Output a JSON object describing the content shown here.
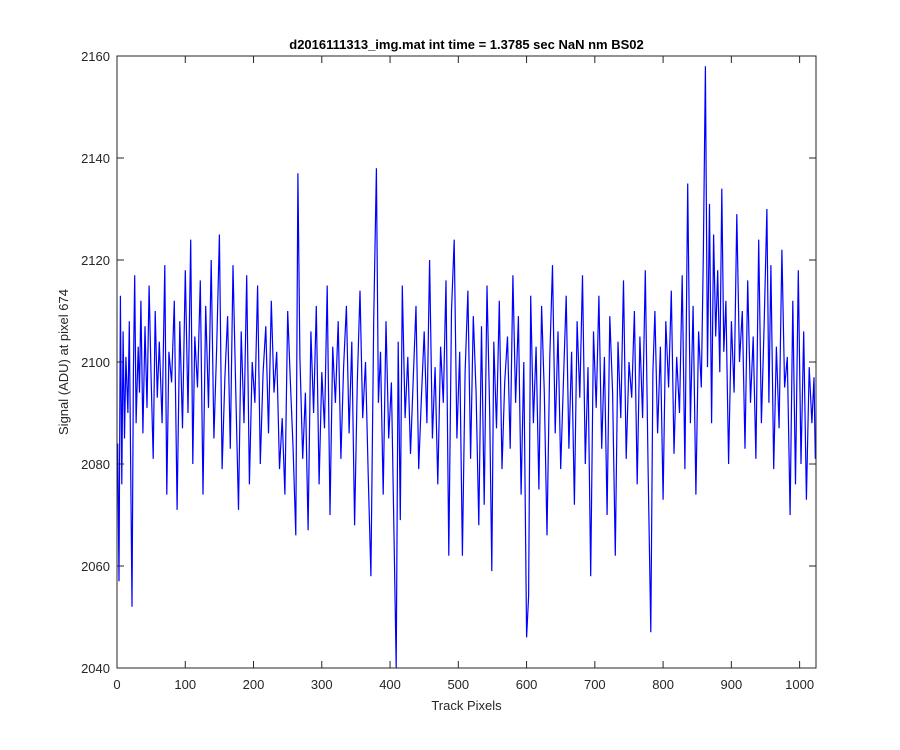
{
  "chart_data": {
    "type": "line",
    "title": "d2016111313_img.mat int time = 1.3785 sec  NaN nm BS02",
    "xlabel": "Track Pixels",
    "ylabel": "Signal (ADU) at pixel 674",
    "xlim": [
      0,
      1024
    ],
    "ylim": [
      2040,
      2160
    ],
    "xticks": [
      0,
      100,
      200,
      300,
      400,
      500,
      600,
      700,
      800,
      900,
      1000
    ],
    "yticks": [
      2040,
      2060,
      2080,
      2100,
      2120,
      2140,
      2160
    ],
    "line_color": "#0000ff",
    "grid": false,
    "series": [
      {
        "color": "#0000ff",
        "points": [
          [
            1,
            2084
          ],
          [
            3,
            2057
          ],
          [
            5,
            2113
          ],
          [
            7,
            2076
          ],
          [
            9,
            2106
          ],
          [
            11,
            2085
          ],
          [
            13,
            2101
          ],
          [
            16,
            2090
          ],
          [
            18,
            2108
          ],
          [
            20,
            2079
          ],
          [
            22,
            2052
          ],
          [
            24,
            2098
          ],
          [
            26,
            2117
          ],
          [
            28,
            2088
          ],
          [
            31,
            2103
          ],
          [
            33,
            2094
          ],
          [
            35,
            2112
          ],
          [
            38,
            2086
          ],
          [
            41,
            2107
          ],
          [
            44,
            2091
          ],
          [
            47,
            2115
          ],
          [
            50,
            2097
          ],
          [
            53,
            2081
          ],
          [
            56,
            2110
          ],
          [
            59,
            2093
          ],
          [
            62,
            2104
          ],
          [
            66,
            2088
          ],
          [
            70,
            2119
          ],
          [
            73,
            2074
          ],
          [
            76,
            2102
          ],
          [
            80,
            2096
          ],
          [
            84,
            2112
          ],
          [
            88,
            2071
          ],
          [
            92,
            2108
          ],
          [
            96,
            2087
          ],
          [
            100,
            2118
          ],
          [
            104,
            2090
          ],
          [
            108,
            2124
          ],
          [
            111,
            2080
          ],
          [
            114,
            2105
          ],
          [
            118,
            2095
          ],
          [
            122,
            2116
          ],
          [
            126,
            2074
          ],
          [
            130,
            2111
          ],
          [
            134,
            2091
          ],
          [
            138,
            2120
          ],
          [
            142,
            2085
          ],
          [
            146,
            2103
          ],
          [
            150,
            2125
          ],
          [
            154,
            2079
          ],
          [
            158,
            2097
          ],
          [
            162,
            2109
          ],
          [
            166,
            2083
          ],
          [
            170,
            2119
          ],
          [
            174,
            2094
          ],
          [
            178,
            2071
          ],
          [
            182,
            2106
          ],
          [
            186,
            2088
          ],
          [
            190,
            2117
          ],
          [
            194,
            2076
          ],
          [
            198,
            2100
          ],
          [
            202,
            2092
          ],
          [
            206,
            2115
          ],
          [
            210,
            2080
          ],
          [
            214,
            2098
          ],
          [
            218,
            2107
          ],
          [
            222,
            2086
          ],
          [
            226,
            2112
          ],
          [
            230,
            2094
          ],
          [
            234,
            2102
          ],
          [
            238,
            2079
          ],
          [
            242,
            2089
          ],
          [
            246,
            2074
          ],
          [
            250,
            2110
          ],
          [
            254,
            2096
          ],
          [
            258,
            2083
          ],
          [
            262,
            2066
          ],
          [
            265,
            2137
          ],
          [
            268,
            2101
          ],
          [
            272,
            2081
          ],
          [
            276,
            2094
          ],
          [
            280,
            2067
          ],
          [
            284,
            2106
          ],
          [
            288,
            2090
          ],
          [
            292,
            2111
          ],
          [
            296,
            2076
          ],
          [
            300,
            2098
          ],
          [
            304,
            2087
          ],
          [
            308,
            2115
          ],
          [
            312,
            2070
          ],
          [
            316,
            2103
          ],
          [
            320,
            2092
          ],
          [
            324,
            2108
          ],
          [
            328,
            2081
          ],
          [
            332,
            2099
          ],
          [
            336,
            2111
          ],
          [
            340,
            2086
          ],
          [
            344,
            2104
          ],
          [
            348,
            2068
          ],
          [
            352,
            2096
          ],
          [
            356,
            2114
          ],
          [
            360,
            2089
          ],
          [
            364,
            2100
          ],
          [
            368,
            2078
          ],
          [
            372,
            2058
          ],
          [
            376,
            2108
          ],
          [
            380,
            2138
          ],
          [
            383,
            2092
          ],
          [
            386,
            2102
          ],
          [
            390,
            2074
          ],
          [
            394,
            2108
          ],
          [
            398,
            2085
          ],
          [
            402,
            2096
          ],
          [
            406,
            2065
          ],
          [
            409,
            2040
          ],
          [
            412,
            2104
          ],
          [
            415,
            2069
          ],
          [
            418,
            2115
          ],
          [
            422,
            2089
          ],
          [
            426,
            2101
          ],
          [
            430,
            2082
          ],
          [
            434,
            2097
          ],
          [
            438,
            2111
          ],
          [
            442,
            2079
          ],
          [
            446,
            2093
          ],
          [
            450,
            2106
          ],
          [
            454,
            2088
          ],
          [
            458,
            2120
          ],
          [
            462,
            2085
          ],
          [
            466,
            2099
          ],
          [
            470,
            2076
          ],
          [
            474,
            2103
          ],
          [
            478,
            2092
          ],
          [
            482,
            2116
          ],
          [
            486,
            2062
          ],
          [
            490,
            2110
          ],
          [
            494,
            2124
          ],
          [
            498,
            2085
          ],
          [
            502,
            2102
          ],
          [
            506,
            2062
          ],
          [
            510,
            2098
          ],
          [
            514,
            2114
          ],
          [
            518,
            2081
          ],
          [
            522,
            2109
          ],
          [
            526,
            2094
          ],
          [
            530,
            2068
          ],
          [
            534,
            2107
          ],
          [
            538,
            2072
          ],
          [
            542,
            2115
          ],
          [
            546,
            2090
          ],
          [
            549,
            2059
          ],
          [
            552,
            2104
          ],
          [
            556,
            2087
          ],
          [
            560,
            2112
          ],
          [
            564,
            2079
          ],
          [
            568,
            2096
          ],
          [
            572,
            2105
          ],
          [
            576,
            2083
          ],
          [
            580,
            2117
          ],
          [
            584,
            2092
          ],
          [
            588,
            2109
          ],
          [
            592,
            2074
          ],
          [
            596,
            2100
          ],
          [
            600,
            2046
          ],
          [
            603,
            2054
          ],
          [
            606,
            2113
          ],
          [
            610,
            2088
          ],
          [
            614,
            2103
          ],
          [
            618,
            2075
          ],
          [
            622,
            2111
          ],
          [
            626,
            2094
          ],
          [
            630,
            2066
          ],
          [
            634,
            2101
          ],
          [
            638,
            2119
          ],
          [
            642,
            2086
          ],
          [
            646,
            2106
          ],
          [
            650,
            2079
          ],
          [
            654,
            2096
          ],
          [
            658,
            2113
          ],
          [
            662,
            2083
          ],
          [
            666,
            2102
          ],
          [
            670,
            2072
          ],
          [
            674,
            2108
          ],
          [
            678,
            2093
          ],
          [
            682,
            2117
          ],
          [
            686,
            2080
          ],
          [
            690,
            2099
          ],
          [
            694,
            2058
          ],
          [
            698,
            2106
          ],
          [
            702,
            2091
          ],
          [
            706,
            2113
          ],
          [
            710,
            2083
          ],
          [
            714,
            2101
          ],
          [
            718,
            2070
          ],
          [
            722,
            2109
          ],
          [
            726,
            2094
          ],
          [
            730,
            2062
          ],
          [
            734,
            2104
          ],
          [
            738,
            2089
          ],
          [
            742,
            2116
          ],
          [
            746,
            2081
          ],
          [
            750,
            2100
          ],
          [
            754,
            2093
          ],
          [
            758,
            2110
          ],
          [
            762,
            2076
          ],
          [
            766,
            2105
          ],
          [
            770,
            2089
          ],
          [
            774,
            2118
          ],
          [
            778,
            2079
          ],
          [
            782,
            2047
          ],
          [
            785,
            2098
          ],
          [
            788,
            2110
          ],
          [
            792,
            2086
          ],
          [
            796,
            2103
          ],
          [
            800,
            2073
          ],
          [
            804,
            2108
          ],
          [
            808,
            2095
          ],
          [
            812,
            2114
          ],
          [
            816,
            2082
          ],
          [
            820,
            2101
          ],
          [
            824,
            2090
          ],
          [
            828,
            2117
          ],
          [
            832,
            2079
          ],
          [
            836,
            2135
          ],
          [
            840,
            2088
          ],
          [
            844,
            2111
          ],
          [
            848,
            2074
          ],
          [
            852,
            2106
          ],
          [
            856,
            2095
          ],
          [
            859,
            2122
          ],
          [
            862,
            2158
          ],
          [
            865,
            2099
          ],
          [
            868,
            2131
          ],
          [
            871,
            2088
          ],
          [
            874,
            2125
          ],
          [
            877,
            2105
          ],
          [
            880,
            2118
          ],
          [
            883,
            2098
          ],
          [
            886,
            2134
          ],
          [
            889,
            2102
          ],
          [
            892,
            2112
          ],
          [
            896,
            2080
          ],
          [
            900,
            2108
          ],
          [
            904,
            2094
          ],
          [
            908,
            2129
          ],
          [
            912,
            2100
          ],
          [
            916,
            2110
          ],
          [
            920,
            2083
          ],
          [
            924,
            2116
          ],
          [
            928,
            2092
          ],
          [
            932,
            2105
          ],
          [
            936,
            2081
          ],
          [
            940,
            2124
          ],
          [
            944,
            2088
          ],
          [
            948,
            2107
          ],
          [
            952,
            2130
          ],
          [
            955,
            2092
          ],
          [
            958,
            2119
          ],
          [
            962,
            2079
          ],
          [
            966,
            2103
          ],
          [
            970,
            2087
          ],
          [
            974,
            2122
          ],
          [
            978,
            2095
          ],
          [
            982,
            2101
          ],
          [
            986,
            2070
          ],
          [
            990,
            2112
          ],
          [
            994,
            2076
          ],
          [
            998,
            2118
          ],
          [
            1002,
            2080
          ],
          [
            1006,
            2106
          ],
          [
            1010,
            2073
          ],
          [
            1014,
            2099
          ],
          [
            1018,
            2088
          ],
          [
            1021,
            2097
          ],
          [
            1023,
            2081
          ]
        ]
      }
    ]
  }
}
